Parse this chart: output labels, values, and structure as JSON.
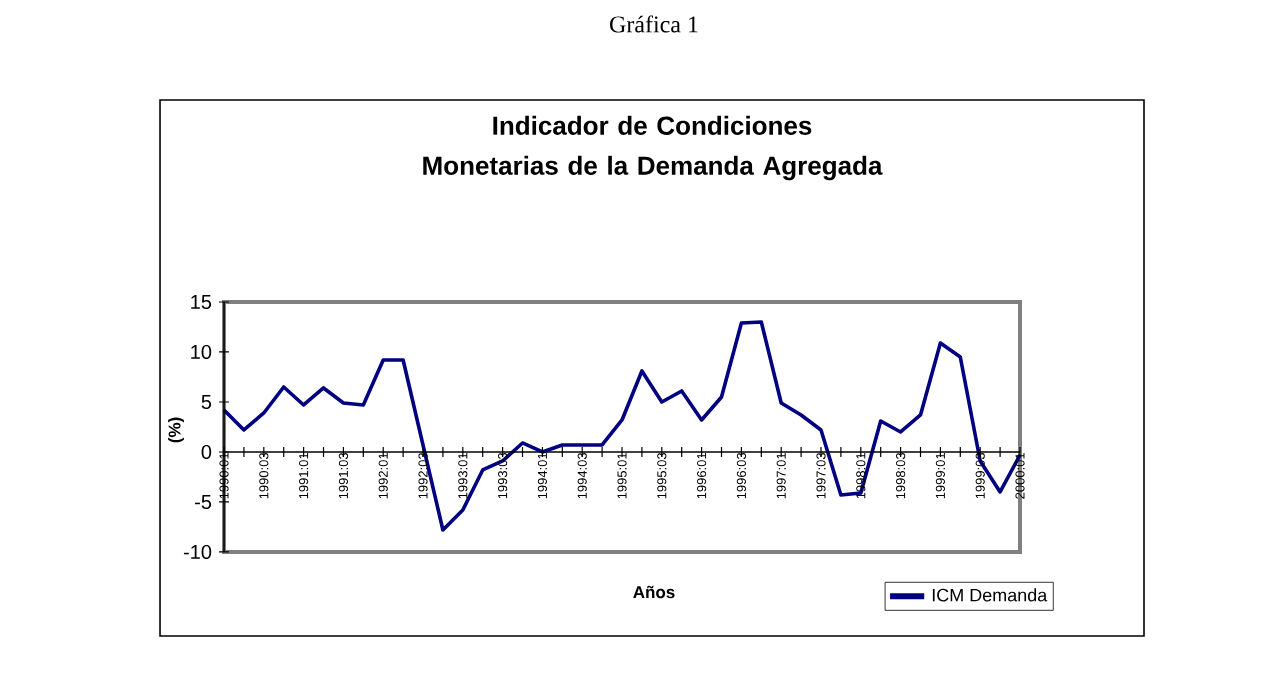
{
  "chart_data": {
    "type": "line",
    "title": "Indicador de Condiciones Monetarias de la Demanda Agregada",
    "xlabel": "Años",
    "ylabel": "(%)",
    "annotations": [
      "Gráfica 1"
    ],
    "categories": [
      "1990:01",
      null,
      "1990:03",
      null,
      "1991:01",
      null,
      "1991:03",
      null,
      "1992:01",
      null,
      "1992:03",
      null,
      "1993:01",
      null,
      "1993:03",
      null,
      "1994:01",
      null,
      "1994:03",
      null,
      "1995:01",
      null,
      "1995:03",
      null,
      "1996:01",
      null,
      "1996:03",
      null,
      "1997:01",
      null,
      "1997:03",
      null,
      "1998:01",
      null,
      "1998:03",
      null,
      "1999:01",
      null,
      "1999:03",
      null,
      "2000:01"
    ],
    "series": [
      {
        "name": "ICM Demanda",
        "color": "#000080",
        "values": [
          4.2,
          2.2,
          3.9,
          6.5,
          4.7,
          6.4,
          4.9,
          4.7,
          9.2,
          9.2,
          0.7,
          -7.8,
          -5.8,
          -1.8,
          -0.9,
          0.9,
          0,
          0.7,
          0.7,
          0.7,
          3.2,
          8.1,
          5.0,
          6.1,
          3.2,
          5.5,
          12.9,
          13.0,
          4.9,
          3.7,
          2.2,
          -4.3,
          -4.1,
          3.1,
          2.0,
          3.7,
          10.9,
          9.5,
          -0.9,
          -4.0,
          -0.3
        ]
      }
    ],
    "ylim": [
      -10,
      15
    ],
    "yticks": [
      -10,
      -5,
      0,
      5,
      10,
      15
    ],
    "grid": false,
    "legend": "bottom right",
    "marker": "none",
    "line_style": "solid"
  }
}
